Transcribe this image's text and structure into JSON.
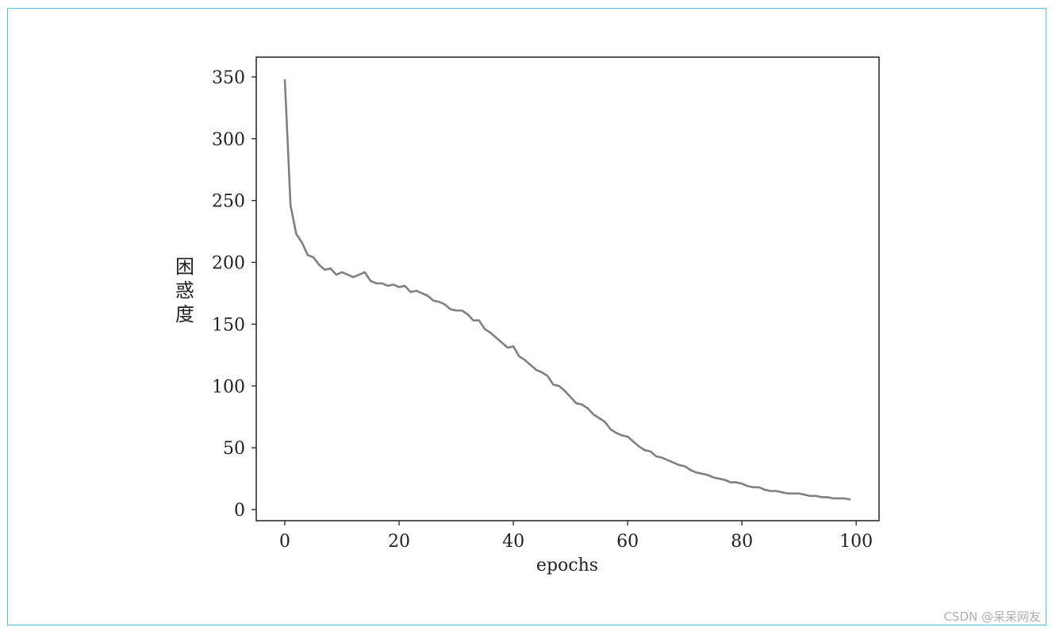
{
  "chart_data": {
    "type": "line",
    "title": "",
    "xlabel": "epochs",
    "ylabel": "困惑度",
    "xlim": [
      -5,
      104
    ],
    "ylim": [
      -9,
      366
    ],
    "grid": false,
    "x_ticks": [
      0,
      20,
      40,
      60,
      80,
      100
    ],
    "y_ticks": [
      0,
      50,
      100,
      150,
      200,
      250,
      300,
      350
    ],
    "series": [
      {
        "color": "#808080",
        "x": [
          0,
          1,
          2,
          3,
          4,
          5,
          6,
          7,
          8,
          9,
          10,
          11,
          12,
          13,
          14,
          15,
          16,
          17,
          18,
          19,
          20,
          21,
          22,
          23,
          24,
          25,
          26,
          27,
          28,
          29,
          30,
          31,
          32,
          33,
          34,
          35,
          36,
          37,
          38,
          39,
          40,
          41,
          42,
          43,
          44,
          45,
          46,
          47,
          48,
          49,
          50,
          51,
          52,
          53,
          54,
          55,
          56,
          57,
          58,
          59,
          60,
          61,
          62,
          63,
          64,
          65,
          66,
          67,
          68,
          69,
          70,
          71,
          72,
          73,
          74,
          75,
          76,
          77,
          78,
          79,
          80,
          81,
          82,
          83,
          84,
          85,
          86,
          87,
          88,
          89,
          90,
          91,
          92,
          93,
          94,
          95,
          96,
          97,
          98,
          99
        ],
        "y": [
          348,
          246,
          223,
          216,
          206,
          204,
          198,
          194,
          195,
          190,
          192,
          190,
          188,
          190,
          192,
          185,
          183,
          183,
          181,
          182,
          180,
          181,
          176,
          177,
          175,
          173,
          169,
          168,
          166,
          162,
          161,
          161,
          158,
          153,
          153,
          146,
          143,
          139,
          135,
          131,
          132,
          124,
          121,
          117,
          113,
          111,
          108,
          101,
          100,
          96,
          91,
          86,
          85,
          82,
          77,
          74,
          71,
          65,
          62,
          60,
          59,
          55,
          51,
          48,
          47,
          43,
          42,
          40,
          38,
          36,
          35,
          32,
          30,
          29,
          28,
          26,
          25,
          24,
          22,
          22,
          21,
          19,
          18,
          18,
          16,
          15,
          15,
          14,
          13,
          13,
          13,
          12,
          11,
          11,
          10,
          10,
          9,
          9,
          9,
          8
        ]
      }
    ]
  },
  "watermark": "CSDN @呆呆网友"
}
